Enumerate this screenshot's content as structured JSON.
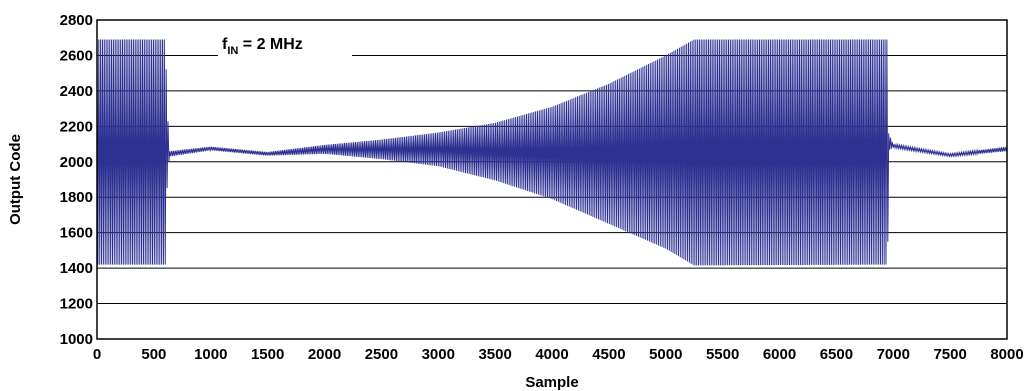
{
  "chart_data": {
    "type": "line",
    "title": "",
    "xlabel": "Sample",
    "ylabel": "Output Code",
    "xlim": [
      0,
      8000
    ],
    "ylim": [
      1000,
      2800
    ],
    "xticks": [
      "0",
      "500",
      "1000",
      "1500",
      "2000",
      "2500",
      "3000",
      "3500",
      "4000",
      "4500",
      "5000",
      "5500",
      "6000",
      "6500",
      "7000",
      "7500",
      "8000"
    ],
    "yticks": [
      "1000",
      "1200",
      "1400",
      "1600",
      "1800",
      "2000",
      "2200",
      "2400",
      "2600",
      "2800"
    ],
    "grid": true,
    "annotation": {
      "main": "f",
      "sub": "IN",
      "rest": " = 2 MHz"
    },
    "series": [
      {
        "color": "#2e3192",
        "envelope_upper": [
          [
            0,
            2690
          ],
          [
            600,
            2690
          ],
          [
            620,
            2270
          ],
          [
            640,
            2060
          ],
          [
            1000,
            2085
          ],
          [
            1500,
            2055
          ],
          [
            2000,
            2095
          ],
          [
            2500,
            2125
          ],
          [
            3000,
            2165
          ],
          [
            3500,
            2220
          ],
          [
            4000,
            2310
          ],
          [
            4500,
            2440
          ],
          [
            5000,
            2600
          ],
          [
            5250,
            2690
          ],
          [
            6950,
            2690
          ],
          [
            6960,
            2160
          ],
          [
            7000,
            2100
          ],
          [
            7500,
            2045
          ],
          [
            8000,
            2085
          ]
        ],
        "envelope_lower": [
          [
            0,
            1420
          ],
          [
            600,
            1420
          ],
          [
            620,
            1960
          ],
          [
            640,
            2030
          ],
          [
            1000,
            2065
          ],
          [
            1500,
            2035
          ],
          [
            2000,
            2045
          ],
          [
            2500,
            2015
          ],
          [
            3000,
            1975
          ],
          [
            3500,
            1895
          ],
          [
            4000,
            1790
          ],
          [
            4500,
            1650
          ],
          [
            5000,
            1510
          ],
          [
            5250,
            1415
          ],
          [
            6950,
            1420
          ],
          [
            6960,
            2065
          ],
          [
            7000,
            2080
          ],
          [
            7500,
            2030
          ],
          [
            8000,
            2060
          ]
        ]
      }
    ]
  }
}
